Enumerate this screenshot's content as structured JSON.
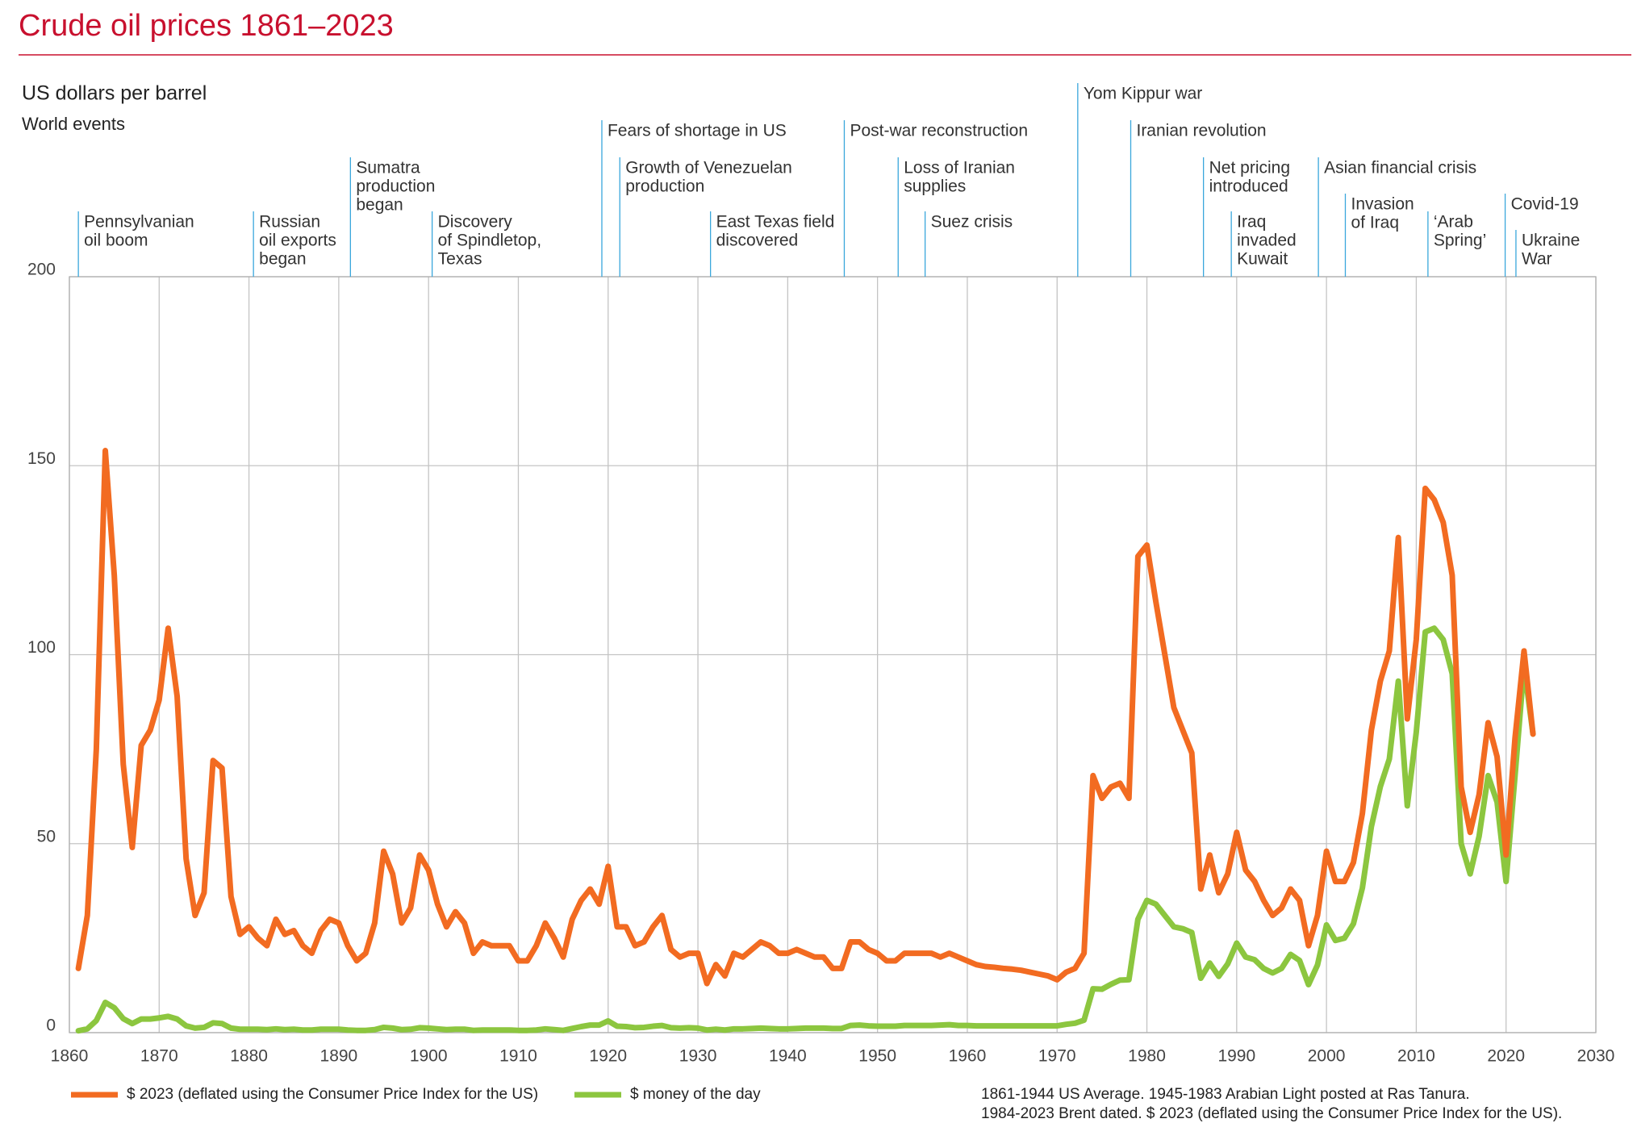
{
  "chart_data": {
    "type": "line",
    "title": "Crude oil prices 1861–2023",
    "y_label": "US dollars per barrel",
    "events_title": "World events",
    "events": [
      {
        "year": 1861,
        "lines": [
          "Pennsylvanian",
          "oil boom"
        ]
      },
      {
        "year": 1880.5,
        "lines": [
          "Russian",
          "oil exports",
          "began"
        ]
      },
      {
        "year": 1891.3,
        "lines": [
          "Sumatra",
          "production",
          "began"
        ]
      },
      {
        "year": 1900.4,
        "lines": [
          "Discovery",
          "of Spindletop,",
          "Texas"
        ]
      },
      {
        "year": 1919.3,
        "lines": [
          "Fears of shortage in US"
        ]
      },
      {
        "year": 1921.3,
        "lines": [
          "Growth of Venezuelan",
          "production"
        ]
      },
      {
        "year": 1931.4,
        "lines": [
          "East Texas field",
          "discovered"
        ]
      },
      {
        "year": 1946.3,
        "lines": [
          "Post-war reconstruction"
        ]
      },
      {
        "year": 1952.3,
        "lines": [
          "Loss of Iranian",
          "supplies"
        ]
      },
      {
        "year": 1955.3,
        "lines": [
          "Suez crisis"
        ]
      },
      {
        "year": 1972.3,
        "lines": [
          "Yom Kippur war"
        ]
      },
      {
        "year": 1978.2,
        "lines": [
          "Iranian revolution"
        ]
      },
      {
        "year": 1986.3,
        "lines": [
          "Net pricing",
          "introduced"
        ]
      },
      {
        "year": 1989.4,
        "lines": [
          "Iraq",
          "invaded",
          "Kuwait"
        ]
      },
      {
        "year": 1999.1,
        "lines": [
          "Asian financial crisis"
        ]
      },
      {
        "year": 2002.1,
        "lines": [
          "Invasion",
          "of Iraq"
        ]
      },
      {
        "year": 2011.3,
        "lines": [
          "‘Arab",
          "Spring’"
        ]
      },
      {
        "year": 2019.9,
        "lines": [
          "Covid-19"
        ]
      },
      {
        "year": 2021.1,
        "lines": [
          "Ukraine",
          "War"
        ]
      }
    ],
    "x": [
      1861,
      1862,
      1863,
      1864,
      1865,
      1866,
      1867,
      1868,
      1869,
      1870,
      1871,
      1872,
      1873,
      1874,
      1875,
      1876,
      1877,
      1878,
      1879,
      1880,
      1881,
      1882,
      1883,
      1884,
      1885,
      1886,
      1887,
      1888,
      1889,
      1890,
      1891,
      1892,
      1893,
      1894,
      1895,
      1896,
      1897,
      1898,
      1899,
      1900,
      1901,
      1902,
      1903,
      1904,
      1905,
      1906,
      1907,
      1908,
      1909,
      1910,
      1911,
      1912,
      1913,
      1914,
      1915,
      1916,
      1917,
      1918,
      1919,
      1920,
      1921,
      1922,
      1923,
      1924,
      1925,
      1926,
      1927,
      1928,
      1929,
      1930,
      1931,
      1932,
      1933,
      1934,
      1935,
      1936,
      1937,
      1938,
      1939,
      1940,
      1941,
      1942,
      1943,
      1944,
      1945,
      1946,
      1947,
      1948,
      1949,
      1950,
      1951,
      1952,
      1953,
      1954,
      1955,
      1956,
      1957,
      1958,
      1959,
      1960,
      1961,
      1962,
      1963,
      1964,
      1965,
      1966,
      1967,
      1968,
      1969,
      1970,
      1971,
      1972,
      1973,
      1974,
      1975,
      1976,
      1977,
      1978,
      1979,
      1980,
      1981,
      1982,
      1983,
      1984,
      1985,
      1986,
      1987,
      1988,
      1989,
      1990,
      1991,
      1992,
      1993,
      1994,
      1995,
      1996,
      1997,
      1998,
      1999,
      2000,
      2001,
      2002,
      2003,
      2004,
      2005,
      2006,
      2007,
      2008,
      2009,
      2010,
      2011,
      2012,
      2013,
      2014,
      2015,
      2016,
      2017,
      2018,
      2019,
      2020,
      2021,
      2022,
      2023
    ],
    "series": [
      {
        "name": "$ 2023 (deflated using the Consumer Price Index for the US)",
        "color": "#f26b21",
        "values": [
          17,
          31,
          75,
          154,
          121,
          71,
          49,
          76,
          80,
          88,
          107,
          89,
          46,
          31,
          37,
          72,
          70,
          36,
          26,
          28,
          25,
          23,
          30,
          26,
          27,
          23,
          21,
          27,
          30,
          29,
          23,
          19,
          21,
          29,
          48,
          42,
          29,
          33,
          47,
          43,
          34,
          28,
          32,
          29,
          21,
          24,
          23,
          23,
          23,
          19,
          19,
          23,
          29,
          25,
          20,
          30,
          35,
          38,
          34,
          44,
          28,
          28,
          23,
          24,
          28,
          31,
          22,
          20,
          21,
          21,
          13,
          18,
          15,
          21,
          20,
          22,
          24,
          23,
          21,
          21,
          22,
          21,
          20,
          20,
          17,
          17,
          24,
          24,
          22,
          21,
          19,
          19,
          21,
          21,
          21,
          21,
          20,
          21,
          20,
          19,
          18,
          17.5,
          17.3,
          17,
          16.8,
          16.5,
          16,
          15.5,
          15,
          14,
          16,
          17,
          21,
          68,
          62,
          65,
          66,
          62,
          126,
          129,
          114,
          100,
          86,
          80,
          74,
          38,
          47,
          37,
          42,
          53,
          43,
          40,
          35,
          31,
          33,
          38,
          35,
          23,
          31,
          48,
          40,
          40,
          45,
          58,
          80,
          93,
          101,
          131,
          83,
          104,
          144,
          141,
          135,
          121,
          65,
          53,
          63,
          82,
          73,
          47,
          78,
          101,
          79
        ]
      },
      {
        "name": "$ money of the day",
        "color": "#8cc63f",
        "values": [
          0.5,
          1,
          3.2,
          8,
          6.6,
          3.7,
          2.4,
          3.6,
          3.6,
          3.9,
          4.3,
          3.6,
          1.8,
          1.2,
          1.4,
          2.6,
          2.4,
          1.2,
          0.9,
          0.9,
          0.9,
          0.8,
          1,
          0.8,
          0.9,
          0.7,
          0.7,
          0.9,
          0.9,
          0.9,
          0.7,
          0.6,
          0.6,
          0.8,
          1.4,
          1.2,
          0.8,
          0.9,
          1.3,
          1.2,
          1,
          0.8,
          0.9,
          0.9,
          0.6,
          0.7,
          0.7,
          0.7,
          0.7,
          0.6,
          0.6,
          0.7,
          1,
          0.8,
          0.6,
          1.1,
          1.6,
          2,
          2,
          3.1,
          1.7,
          1.6,
          1.3,
          1.4,
          1.7,
          1.9,
          1.3,
          1.2,
          1.3,
          1.2,
          0.7,
          0.9,
          0.7,
          1,
          1,
          1.1,
          1.2,
          1.1,
          1,
          1,
          1.1,
          1.2,
          1.2,
          1.2,
          1.1,
          1.1,
          1.9,
          2,
          1.8,
          1.7,
          1.7,
          1.7,
          1.9,
          1.9,
          1.9,
          1.9,
          2,
          2.1,
          1.9,
          1.9,
          1.8,
          1.8,
          1.8,
          1.8,
          1.8,
          1.8,
          1.8,
          1.8,
          1.8,
          1.8,
          2.2,
          2.5,
          3.3,
          11.6,
          11.5,
          12.8,
          13.9,
          14,
          30,
          35,
          34,
          31,
          28,
          27.5,
          26.5,
          14.4,
          18.4,
          14.9,
          18.2,
          23.7,
          20,
          19.3,
          17,
          15.8,
          17,
          20.7,
          19.1,
          12.7,
          17.9,
          28.5,
          24.4,
          25,
          28.8,
          38.3,
          54.5,
          65.1,
          72.4,
          93,
          60,
          79.5,
          106,
          107,
          104,
          95,
          50,
          42,
          52,
          68,
          61,
          40,
          68,
          97,
          79
        ]
      }
    ],
    "xlim": [
      1860,
      2030
    ],
    "xticks": [
      1860,
      1870,
      1880,
      1890,
      1900,
      1910,
      1920,
      1930,
      1940,
      1950,
      1960,
      1970,
      1980,
      1990,
      2000,
      2010,
      2020,
      2030
    ],
    "ylim": [
      0,
      200
    ],
    "yticks": [
      0,
      50,
      100,
      150,
      200
    ],
    "grid": true,
    "notes": [
      "1861-1944 US Average. 1945-1983 Arabian Light posted at Ras Tanura.",
      "1984-2023 Brent dated. $ 2023 (deflated using the Consumer Price Index for the US)."
    ]
  }
}
